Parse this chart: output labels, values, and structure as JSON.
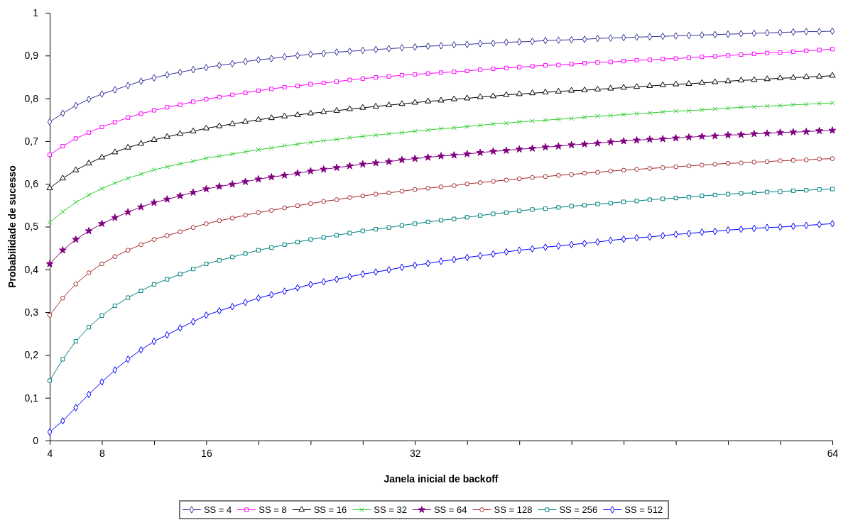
{
  "chart_data": {
    "type": "line",
    "xlabel": "Janela inicial de backoff",
    "ylabel": "Probabilidade de sucesso",
    "x": [
      4,
      5,
      6,
      7,
      8,
      9,
      10,
      11,
      12,
      13,
      14,
      15,
      16,
      17,
      18,
      19,
      20,
      21,
      22,
      23,
      24,
      25,
      26,
      27,
      28,
      29,
      30,
      31,
      32,
      33,
      34,
      35,
      36,
      37,
      38,
      39,
      40,
      41,
      42,
      43,
      44,
      45,
      46,
      47,
      48,
      49,
      50,
      51,
      52,
      53,
      54,
      55,
      56,
      57,
      58,
      59,
      60,
      61,
      62,
      63,
      64
    ],
    "xlim": [
      4,
      64
    ],
    "xticks": [
      4,
      8,
      {
        "value": 12,
        "label": null
      },
      16,
      {
        "value": 20,
        "label": null
      },
      {
        "value": 24,
        "label": null
      },
      {
        "value": 28,
        "label": null
      },
      32,
      {
        "value": 36,
        "label": null
      },
      {
        "value": 40,
        "label": null
      },
      {
        "value": 44,
        "label": null
      },
      {
        "value": 48,
        "label": null
      },
      {
        "value": 52,
        "label": null
      },
      {
        "value": 56,
        "label": null
      },
      {
        "value": 60,
        "label": null
      },
      64
    ],
    "ylim": [
      0,
      1
    ],
    "yticks": [
      0,
      {
        "value": 0.1,
        "label": "0,1"
      },
      {
        "value": 0.2,
        "label": "0,2"
      },
      {
        "value": 0.3,
        "label": "0,3"
      },
      {
        "value": 0.4,
        "label": "0,4"
      },
      {
        "value": 0.5,
        "label": "0,5"
      },
      {
        "value": 0.6,
        "label": "0,6"
      },
      {
        "value": 0.7,
        "label": "0,7"
      },
      {
        "value": 0.8,
        "label": "0,8"
      },
      {
        "value": 0.9,
        "label": "0,9"
      },
      1
    ],
    "grid": false,
    "legend": "bottom",
    "line_style": "solid",
    "series": [
      {
        "name": "SS = 4",
        "color": "#333399",
        "marker": "diamond",
        "values": [
          0.745,
          0.765,
          0.783,
          0.798,
          0.81,
          0.82,
          0.83,
          0.84,
          0.848,
          0.855,
          0.861,
          0.867,
          0.872,
          0.877,
          0.881,
          0.886,
          0.89,
          0.893,
          0.897,
          0.9,
          0.903,
          0.905,
          0.908,
          0.91,
          0.912,
          0.914,
          0.916,
          0.918,
          0.92,
          0.922,
          0.923,
          0.925,
          0.926,
          0.928,
          0.929,
          0.931,
          0.932,
          0.933,
          0.935,
          0.936,
          0.937,
          0.938,
          0.94,
          0.941,
          0.942,
          0.943,
          0.944,
          0.945,
          0.946,
          0.947,
          0.948,
          0.949,
          0.95,
          0.951,
          0.952,
          0.953,
          0.954,
          0.955,
          0.956,
          0.956,
          0.957
        ]
      },
      {
        "name": "SS = 8",
        "color": "#ff00ff",
        "marker": "square",
        "values": [
          0.668,
          0.688,
          0.706,
          0.72,
          0.733,
          0.744,
          0.755,
          0.764,
          0.772,
          0.779,
          0.785,
          0.792,
          0.798,
          0.803,
          0.808,
          0.813,
          0.818,
          0.822,
          0.826,
          0.829,
          0.833,
          0.836,
          0.839,
          0.843,
          0.846,
          0.849,
          0.851,
          0.854,
          0.856,
          0.858,
          0.86,
          0.862,
          0.864,
          0.867,
          0.869,
          0.871,
          0.873,
          0.875,
          0.877,
          0.878,
          0.88,
          0.882,
          0.884,
          0.885,
          0.887,
          0.889,
          0.89,
          0.892,
          0.893,
          0.895,
          0.897,
          0.898,
          0.9,
          0.902,
          0.904,
          0.906,
          0.907,
          0.909,
          0.911,
          0.913,
          0.915
        ]
      },
      {
        "name": "SS = 16",
        "color": "#000000",
        "marker": "triangle",
        "values": [
          0.59,
          0.613,
          0.632,
          0.648,
          0.662,
          0.674,
          0.685,
          0.694,
          0.703,
          0.71,
          0.717,
          0.723,
          0.73,
          0.735,
          0.74,
          0.745,
          0.75,
          0.754,
          0.758,
          0.761,
          0.765,
          0.768,
          0.771,
          0.775,
          0.778,
          0.781,
          0.784,
          0.787,
          0.79,
          0.793,
          0.795,
          0.798,
          0.8,
          0.803,
          0.805,
          0.808,
          0.81,
          0.812,
          0.814,
          0.816,
          0.818,
          0.819,
          0.821,
          0.823,
          0.825,
          0.827,
          0.829,
          0.831,
          0.833,
          0.834,
          0.836,
          0.838,
          0.84,
          0.842,
          0.843,
          0.845,
          0.847,
          0.848,
          0.85,
          0.851,
          0.853
        ]
      },
      {
        "name": "SS = 32",
        "color": "#33cc33",
        "marker": "cross",
        "values": [
          0.51,
          0.535,
          0.557,
          0.574,
          0.589,
          0.602,
          0.613,
          0.623,
          0.633,
          0.64,
          0.647,
          0.653,
          0.66,
          0.665,
          0.67,
          0.675,
          0.68,
          0.684,
          0.689,
          0.693,
          0.697,
          0.701,
          0.704,
          0.708,
          0.711,
          0.714,
          0.717,
          0.72,
          0.723,
          0.726,
          0.729,
          0.731,
          0.734,
          0.737,
          0.74,
          0.742,
          0.745,
          0.747,
          0.749,
          0.751,
          0.753,
          0.756,
          0.758,
          0.76,
          0.762,
          0.764,
          0.766,
          0.768,
          0.77,
          0.771,
          0.773,
          0.775,
          0.777,
          0.779,
          0.78,
          0.782,
          0.783,
          0.785,
          0.786,
          0.788,
          0.789
        ]
      },
      {
        "name": "SS = 64",
        "color": "#800080",
        "marker": "star",
        "values": [
          0.413,
          0.445,
          0.47,
          0.49,
          0.507,
          0.521,
          0.534,
          0.546,
          0.556,
          0.564,
          0.572,
          0.58,
          0.588,
          0.594,
          0.599,
          0.605,
          0.611,
          0.616,
          0.62,
          0.625,
          0.63,
          0.634,
          0.638,
          0.642,
          0.646,
          0.649,
          0.652,
          0.656,
          0.659,
          0.662,
          0.665,
          0.667,
          0.67,
          0.673,
          0.676,
          0.678,
          0.681,
          0.683,
          0.686,
          0.688,
          0.691,
          0.693,
          0.695,
          0.698,
          0.7,
          0.702,
          0.704,
          0.705,
          0.707,
          0.709,
          0.711,
          0.712,
          0.714,
          0.715,
          0.717,
          0.718,
          0.72,
          0.721,
          0.722,
          0.724,
          0.725
        ]
      },
      {
        "name": "SS = 128",
        "color": "#a52a2a",
        "marker": "circle",
        "values": [
          0.293,
          0.333,
          0.366,
          0.392,
          0.413,
          0.43,
          0.445,
          0.458,
          0.47,
          0.479,
          0.488,
          0.498,
          0.507,
          0.514,
          0.52,
          0.527,
          0.533,
          0.538,
          0.544,
          0.549,
          0.554,
          0.559,
          0.563,
          0.568,
          0.572,
          0.576,
          0.579,
          0.583,
          0.587,
          0.59,
          0.593,
          0.596,
          0.6,
          0.603,
          0.606,
          0.609,
          0.612,
          0.615,
          0.617,
          0.62,
          0.622,
          0.625,
          0.627,
          0.63,
          0.632,
          0.634,
          0.636,
          0.638,
          0.64,
          0.642,
          0.644,
          0.646,
          0.648,
          0.649,
          0.651,
          0.652,
          0.654,
          0.655,
          0.656,
          0.658,
          0.659
        ]
      },
      {
        "name": "SS = 256",
        "color": "#008080",
        "marker": "square",
        "values": [
          0.14,
          0.19,
          0.232,
          0.265,
          0.292,
          0.315,
          0.334,
          0.35,
          0.365,
          0.377,
          0.389,
          0.401,
          0.413,
          0.421,
          0.429,
          0.437,
          0.445,
          0.451,
          0.458,
          0.464,
          0.47,
          0.475,
          0.48,
          0.485,
          0.49,
          0.494,
          0.498,
          0.503,
          0.507,
          0.511,
          0.515,
          0.518,
          0.522,
          0.526,
          0.53,
          0.533,
          0.537,
          0.54,
          0.542,
          0.545,
          0.548,
          0.55,
          0.553,
          0.555,
          0.558,
          0.56,
          0.563,
          0.565,
          0.567,
          0.569,
          0.572,
          0.574,
          0.576,
          0.578,
          0.579,
          0.581,
          0.582,
          0.584,
          0.585,
          0.587,
          0.588
        ]
      },
      {
        "name": "SS = 512",
        "color": "#0000ff",
        "marker": "diamond",
        "values": [
          0.02,
          0.046,
          0.077,
          0.108,
          0.137,
          0.165,
          0.19,
          0.212,
          0.232,
          0.247,
          0.263,
          0.278,
          0.293,
          0.303,
          0.313,
          0.323,
          0.333,
          0.341,
          0.349,
          0.357,
          0.365,
          0.371,
          0.377,
          0.383,
          0.389,
          0.394,
          0.399,
          0.405,
          0.41,
          0.414,
          0.419,
          0.423,
          0.428,
          0.432,
          0.436,
          0.441,
          0.445,
          0.448,
          0.452,
          0.455,
          0.458,
          0.461,
          0.464,
          0.468,
          0.471,
          0.474,
          0.476,
          0.479,
          0.482,
          0.484,
          0.487,
          0.489,
          0.492,
          0.494,
          0.496,
          0.498,
          0.499,
          0.501,
          0.503,
          0.505,
          0.507
        ]
      }
    ]
  }
}
